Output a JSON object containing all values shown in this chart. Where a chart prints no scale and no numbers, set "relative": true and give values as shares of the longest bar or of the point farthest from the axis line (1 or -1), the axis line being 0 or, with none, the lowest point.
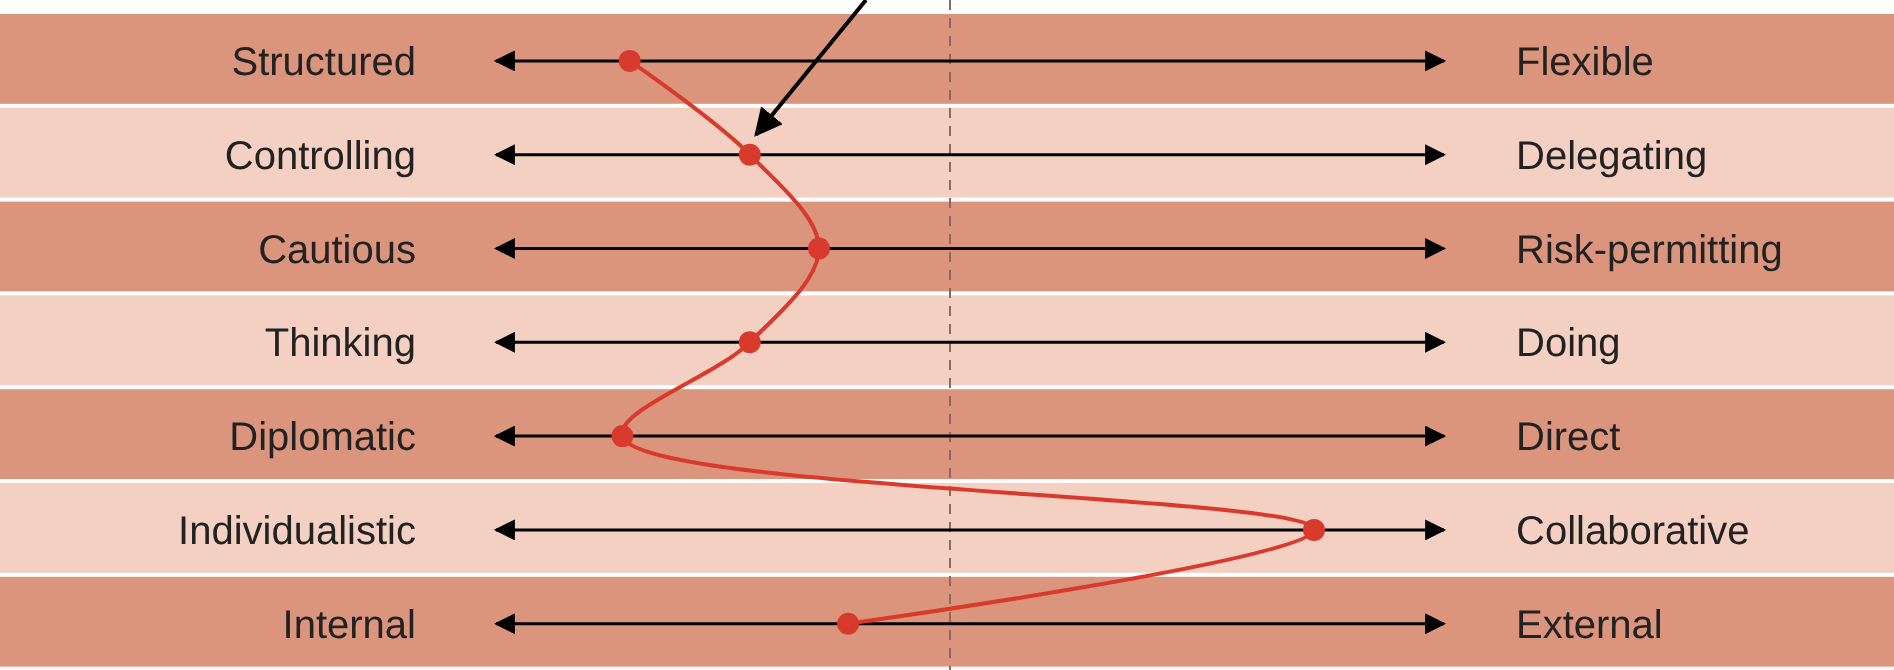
{
  "chart_data": {
    "type": "line",
    "orientation": "horizontal",
    "relative": true,
    "categories": [
      "Structured",
      "Controlling",
      "Cautious",
      "Thinking",
      "Diplomatic",
      "Individualistic",
      "Internal"
    ],
    "values": [
      -0.88,
      -0.55,
      -0.36,
      -0.55,
      -0.9,
      1,
      -0.28
    ],
    "color": "#d93a2e",
    "marker": "circle",
    "line_style": "solid",
    "grid": "y",
    "bands": [
      {
        "axis": "y",
        "from": "Structured",
        "to": "Structured",
        "color": "#dc957d"
      },
      {
        "axis": "y",
        "from": "Controlling",
        "to": "Controlling",
        "color": "#f3d0c1"
      },
      {
        "axis": "y",
        "from": "Cautious",
        "to": "Cautious",
        "color": "#dc957d"
      },
      {
        "axis": "y",
        "from": "Thinking",
        "to": "Thinking",
        "color": "#f3d0c1"
      },
      {
        "axis": "y",
        "from": "Diplomatic",
        "to": "Diplomatic",
        "color": "#dc957d"
      },
      {
        "axis": "y",
        "from": "Individualistic",
        "to": "Individualistic",
        "color": "#f3d0c1"
      },
      {
        "axis": "y",
        "from": "Internal",
        "to": "Internal",
        "color": "#dc957d"
      }
    ],
    "ref_lines": [
      {
        "axis": "x",
        "value": 0,
        "line_style": "dashed",
        "color": "#8a6a60"
      }
    ],
    "annotations": [
      "Flexible",
      "Delegating",
      "Risk-permitting",
      "Doing",
      "Direct",
      "Collaborative",
      "External"
    ]
  }
}
